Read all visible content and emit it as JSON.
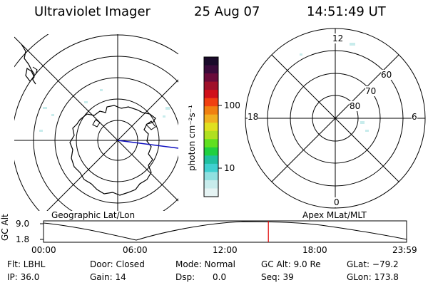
{
  "header": {
    "instrument": "Ultraviolet Imager",
    "date": "25 Aug 07",
    "time": "14:51:49 UT"
  },
  "colorbar": {
    "unit_label": "photon cm⁻²s⁻¹",
    "tick_labels": [
      "100",
      "10"
    ],
    "colors": [
      "#1a0a2a",
      "#3a0a3a",
      "#6a0a3a",
      "#a0102a",
      "#d0101a",
      "#f04010",
      "#f08010",
      "#f0b020",
      "#e0e020",
      "#b0e020",
      "#60e020",
      "#20d040",
      "#20c0a0",
      "#40d0d0",
      "#90e0e0",
      "#c8ecec",
      "#e6f4f4"
    ]
  },
  "left_map": {
    "label": "Geographic Lat/Lon"
  },
  "right_map": {
    "label": "Apex MLat/MLT",
    "mlt_labels": {
      "top": "12",
      "left": "18",
      "right": "6",
      "bottom": "0"
    },
    "mlat_labels": [
      "60",
      "70",
      "80"
    ]
  },
  "timeline": {
    "ylabel": "GC Alt",
    "y_ticks": [
      "9.0",
      "1.8"
    ],
    "x_ticks": [
      "00:00",
      "06:00",
      "12:00",
      "18:00",
      "23:59"
    ],
    "current_time_fraction": 0.6193
  },
  "info": {
    "filter": "Flt: LBHL",
    "door": "Door: Closed",
    "mode": "Mode: Normal",
    "gc_alt": "GC Alt: 9.0 Re",
    "glat": "GLat: −79.2",
    "ip": "IP: 36.0",
    "gain": "Gain: 14",
    "dsp_label": "Dsp:",
    "dsp_value": "0.0",
    "seq": "Seq: 39",
    "glon": "GLon: 173.8"
  }
}
